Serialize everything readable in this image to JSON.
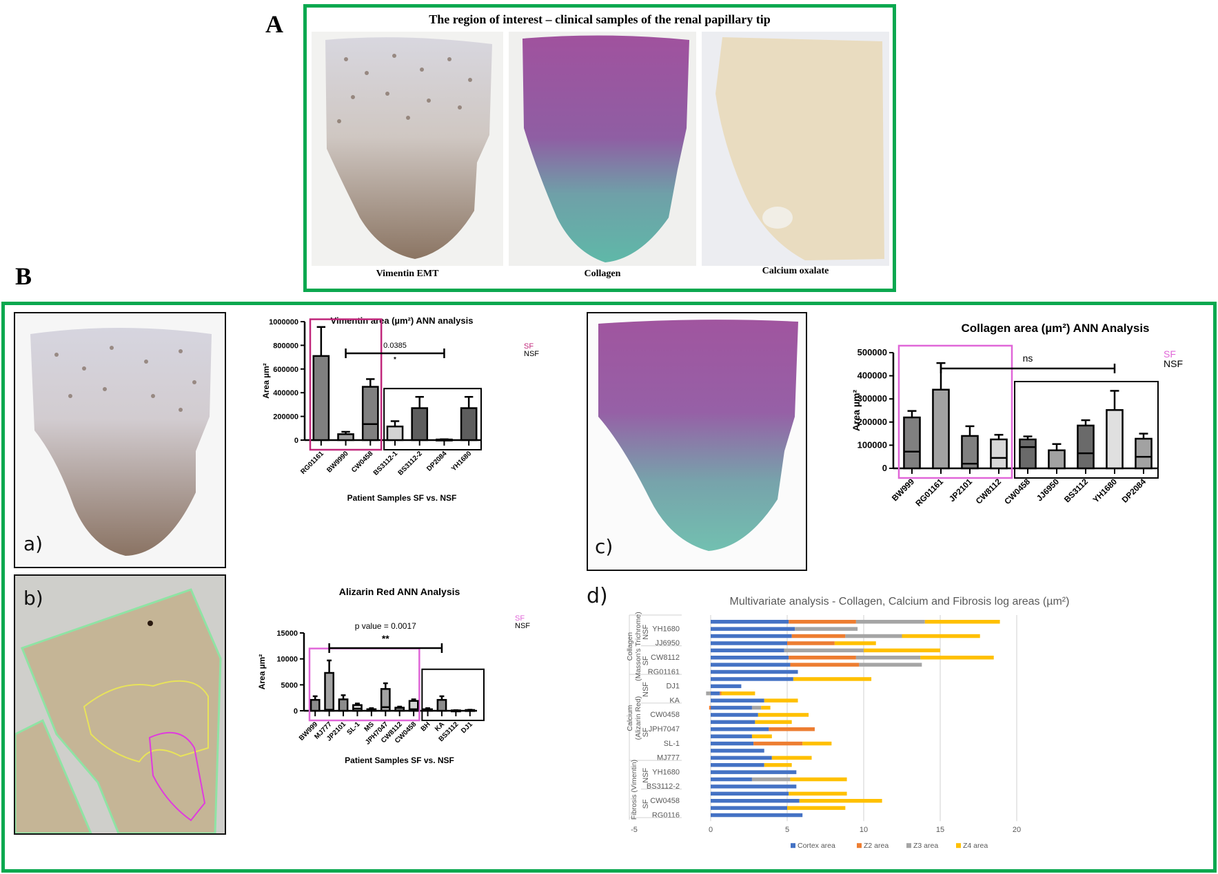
{
  "figure": {
    "panel_A_letter": "A",
    "panel_B_letter": "B",
    "panel_A_title": "The region of interest – clinical samples of the renal papillary tip",
    "panel_A_captions": [
      "Vimentin EMT",
      "Collagen",
      "Calcium oxalate"
    ],
    "sub_labels": {
      "a": "a)",
      "b": "b)",
      "c": "c)",
      "d": "d)"
    },
    "colors": {
      "frame_green": "#0aa84f",
      "sf_magenta": "#c0267a",
      "sf_pink": "#e066d8",
      "cortex": "#4472c4",
      "z2": "#ed7d31",
      "z3": "#a5a5a5",
      "z4": "#ffc000"
    }
  },
  "chart_data": [
    {
      "id": "vimentin",
      "type": "bar",
      "title": "Vimentin area (µm²) ANN analysis",
      "xlabel": "Patient Samples  SF vs. NSF",
      "ylabel": "Area µm²",
      "ylim": [
        0,
        1000000
      ],
      "yticks": [
        0,
        200000,
        400000,
        600000,
        800000,
        1000000
      ],
      "categories": [
        "RG01161",
        "BW9990",
        "CW0458",
        "BS3112-1",
        "BS3112-2",
        "DP2084",
        "YH1680"
      ],
      "values": [
        710000,
        50000,
        450000,
        115000,
        270000,
        5000,
        270000
      ],
      "error_upper": [
        955000,
        70000,
        515000,
        160000,
        365000,
        7000,
        365000
      ],
      "median_line": [
        null,
        null,
        135000,
        null,
        null,
        null,
        null
      ],
      "groups": {
        "SF": [
          "RG01161",
          "BW9990",
          "CW0458"
        ],
        "NSF": [
          "BS3112-1",
          "BS3112-2",
          "DP2084",
          "YH1680"
        ]
      },
      "legend": [
        "SF",
        "NSF"
      ],
      "legend_position": "top-right",
      "annotation": {
        "text": "0.0385",
        "stars": "*",
        "from": "BW9990",
        "to": "DP2084"
      }
    },
    {
      "id": "alizarin",
      "type": "bar",
      "title": "Alizarin Red ANN Analysis",
      "xlabel": "Patient Samples  SF vs. NSF",
      "ylabel": "Area µm²",
      "ylim": [
        0,
        15000
      ],
      "yticks": [
        0,
        5000,
        10000,
        15000
      ],
      "categories": [
        "BW999",
        "MJ777",
        "JP2101",
        "SL-1",
        "MS",
        "JPH7047",
        "CW8112",
        "CW0458",
        "BH",
        "KA",
        "BS3112",
        "DJ1"
      ],
      "values": [
        2100,
        7300,
        2200,
        1100,
        300,
        4200,
        600,
        1900,
        300,
        2100,
        80,
        150
      ],
      "error_upper": [
        2800,
        9700,
        3000,
        1400,
        500,
        5300,
        800,
        2200,
        500,
        2800,
        120,
        200
      ],
      "median_line": [
        null,
        200,
        null,
        400,
        null,
        700,
        null,
        300,
        null,
        null,
        null,
        null
      ],
      "groups": {
        "SF": [
          "BW999",
          "MJ777",
          "JP2101",
          "SL-1",
          "MS",
          "JPH7047",
          "CW8112",
          "CW0458"
        ],
        "NSF": [
          "BH",
          "KA",
          "BS3112",
          "DJ1"
        ]
      },
      "legend": [
        "SF",
        "NSF"
      ],
      "legend_position": "top-right",
      "annotation": {
        "text": "p value = 0.0017",
        "stars": "**",
        "from": "MJ777",
        "to": "KA"
      }
    },
    {
      "id": "collagen",
      "type": "bar",
      "title": "Collagen area (µm²) ANN Analysis",
      "ylabel": "Area µm²",
      "ylim": [
        0,
        500000
      ],
      "yticks": [
        0,
        100000,
        200000,
        300000,
        400000,
        500000
      ],
      "categories": [
        "BW999",
        "RG01161",
        "JP2101",
        "CW8112",
        "CW0458",
        "JJ6950",
        "BS3112",
        "YH1680",
        "DP2084"
      ],
      "values": [
        220000,
        340000,
        140000,
        125000,
        125000,
        78000,
        185000,
        252000,
        128000
      ],
      "error_upper": [
        248000,
        455000,
        182000,
        145000,
        138000,
        105000,
        208000,
        335000,
        150000
      ],
      "median_line": [
        72000,
        null,
        20000,
        45000,
        92000,
        null,
        65000,
        null,
        50000
      ],
      "groups": {
        "SF": [
          "BW999",
          "RG01161",
          "JP2101",
          "CW8112"
        ],
        "NSF": [
          "CW0458",
          "JJ6950",
          "BS3112",
          "YH1680",
          "DP2084"
        ]
      },
      "legend": [
        "SF",
        "NSF"
      ],
      "legend_position": "top-right",
      "annotation": {
        "text": "ns",
        "from": "RG01161",
        "to": "YH1680"
      }
    },
    {
      "id": "multivariate",
      "type": "bar",
      "orientation": "horizontal-stacked",
      "title": "Multivariate analysis - Collagen, Calcium and Fibrosis log areas (µm²)",
      "xlim": [
        -5,
        20
      ],
      "xticks": [
        -5,
        0,
        5,
        10,
        15,
        20
      ],
      "grid": true,
      "legend": [
        "Cortex area",
        "Z2 area",
        "Z3 area",
        "Z4 area"
      ],
      "legend_position": "bottom",
      "groups": [
        {
          "name": "Collagen (Masson's Trichrome)",
          "subgroups": [
            {
              "name": "NSF",
              "labels": [
                "YH1680",
                "JJ6950"
              ]
            },
            {
              "name": "SF",
              "labels": [
                "CW8112",
                "RG01161"
              ]
            }
          ]
        },
        {
          "name": "Calcium (Alizarin Red)",
          "subgroups": [
            {
              "name": "NSF",
              "labels": [
                "DJ1",
                "KA"
              ]
            },
            {
              "name": "SF",
              "labels": [
                "CW0458",
                "JPH7047",
                "SL-1",
                "MJ777"
              ]
            }
          ]
        },
        {
          "name": "Fibrosis (Vimentin)",
          "subgroups": [
            {
              "name": "NSF",
              "labels": [
                "YH1680",
                "BS3112-2"
              ]
            },
            {
              "name": "SF",
              "labels": [
                "CW0458",
                "RG0116"
              ]
            }
          ]
        }
      ],
      "rows": [
        {
          "label": "",
          "cortex": 5.1,
          "z2": 4.4,
          "z3": 4.5,
          "z4": 4.9
        },
        {
          "label": "YH1680",
          "cortex": 5.5,
          "z2": 0,
          "z3": 4.1,
          "z4": 0
        },
        {
          "label": "",
          "cortex": 5.3,
          "z2": 3.5,
          "z3": 3.7,
          "z4": 5.1
        },
        {
          "label": "JJ6950",
          "cortex": 5.0,
          "z2": 3.1,
          "z3": 0,
          "z4": 2.7
        },
        {
          "label": "",
          "cortex": 4.8,
          "z2": 0,
          "z3": 5.2,
          "z4": 5.0
        },
        {
          "label": "CW8112",
          "cortex": 5.1,
          "z2": 4.4,
          "z3": 4.2,
          "z4": 4.8
        },
        {
          "label": "",
          "cortex": 5.2,
          "z2": 4.5,
          "z3": 4.1,
          "z4": 0
        },
        {
          "label": "RG01161",
          "cortex": 5.7,
          "z2": 0,
          "z3": 0,
          "z4": 0
        },
        {
          "label": "",
          "cortex": 5.4,
          "z2": 0,
          "z3": 0,
          "z4": 5.1
        },
        {
          "label": "DJ1",
          "cortex": 2.0,
          "z2": 0,
          "z3": 0,
          "z4": 0
        },
        {
          "label": "",
          "cortex": 0.6,
          "z2": 0.1,
          "z3": -0.3,
          "z4": 2.2
        },
        {
          "label": "KA",
          "cortex": 3.5,
          "z2": 0,
          "z3": 0,
          "z4": 2.2
        },
        {
          "label": "",
          "cortex": 2.7,
          "z2": -0.1,
          "z3": 0.6,
          "z4": 0.6
        },
        {
          "label": "CW0458",
          "cortex": 3.1,
          "z2": 0,
          "z3": 0,
          "z4": 3.3
        },
        {
          "label": "",
          "cortex": 2.9,
          "z2": 0,
          "z3": 0,
          "z4": 2.4
        },
        {
          "label": "JPH7047",
          "cortex": 3.8,
          "z2": 3.0,
          "z3": 0,
          "z4": 0
        },
        {
          "label": "",
          "cortex": 2.7,
          "z2": 0,
          "z3": 0,
          "z4": 1.3
        },
        {
          "label": "SL-1",
          "cortex": 2.8,
          "z2": 3.2,
          "z3": 0,
          "z4": 1.9
        },
        {
          "label": "",
          "cortex": 3.5,
          "z2": 0,
          "z3": 0,
          "z4": 0
        },
        {
          "label": "MJ777",
          "cortex": 4.0,
          "z2": 0,
          "z3": 0,
          "z4": 2.6
        },
        {
          "label": "",
          "cortex": 3.5,
          "z2": 0,
          "z3": 0,
          "z4": 1.8
        },
        {
          "label": "YH1680",
          "cortex": 5.6,
          "z2": 0,
          "z3": 0,
          "z4": 0
        },
        {
          "label": "",
          "cortex": 2.7,
          "z2": 0,
          "z3": 2.5,
          "z4": 3.7
        },
        {
          "label": "BS3112-2",
          "cortex": 5.6,
          "z2": 0,
          "z3": 0,
          "z4": 0
        },
        {
          "label": "",
          "cortex": 5.1,
          "z2": 0,
          "z3": 0,
          "z4": 3.8
        },
        {
          "label": "CW0458",
          "cortex": 5.8,
          "z2": 0,
          "z3": 0,
          "z4": 5.4
        },
        {
          "label": "",
          "cortex": 5.0,
          "z2": 0,
          "z3": 0,
          "z4": 3.8
        },
        {
          "label": "RG0116",
          "cortex": 6.0,
          "z2": 0,
          "z3": 0,
          "z4": 0
        }
      ]
    }
  ]
}
